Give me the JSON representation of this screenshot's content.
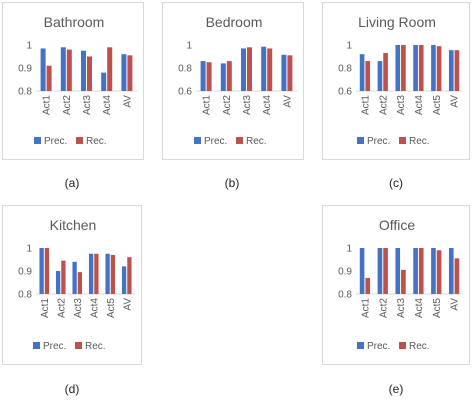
{
  "colors": {
    "prec": "#4472c4",
    "rec": "#c0504d",
    "text": "#595959",
    "grid": "#d9d9d9"
  },
  "legend": {
    "prec": "Prec.",
    "rec": "Rec."
  },
  "captions": [
    "(a)",
    "(b)",
    "(c)",
    "(d)",
    "(e)"
  ],
  "chart_data": [
    {
      "type": "bar",
      "title": "Bathroom",
      "categories": [
        "Act1",
        "Act2",
        "Act3",
        "Act4",
        "AV"
      ],
      "series": [
        {
          "name": "Prec.",
          "values": [
            0.985,
            0.99,
            0.975,
            0.88,
            0.96
          ]
        },
        {
          "name": "Rec.",
          "values": [
            0.91,
            0.98,
            0.95,
            0.99,
            0.955
          ]
        }
      ],
      "ylim": [
        0.8,
        1.0
      ],
      "yticks": [
        "0.8",
        "0.9",
        "1"
      ],
      "legend": "bottom"
    },
    {
      "type": "bar",
      "title": "Bedroom",
      "categories": [
        "Act1",
        "Act2",
        "Act3",
        "Act4",
        "AV"
      ],
      "series": [
        {
          "name": "Prec.",
          "values": [
            0.86,
            0.84,
            0.97,
            0.985,
            0.915
          ]
        },
        {
          "name": "Rec.",
          "values": [
            0.85,
            0.86,
            0.98,
            0.97,
            0.91
          ]
        }
      ],
      "ylim": [
        0.6,
        1.0
      ],
      "yticks": [
        "0.6",
        "0.8",
        "1"
      ],
      "legend": "bottom"
    },
    {
      "type": "bar",
      "title": "Living Room",
      "categories": [
        "Act1",
        "Act2",
        "Act3",
        "Act4",
        "Act5",
        "AV"
      ],
      "series": [
        {
          "name": "Prec.",
          "values": [
            0.92,
            0.86,
            1.0,
            1.0,
            1.0,
            0.955
          ]
        },
        {
          "name": "Rec.",
          "values": [
            0.86,
            0.93,
            1.0,
            1.0,
            0.99,
            0.955
          ]
        }
      ],
      "ylim": [
        0.6,
        1.0
      ],
      "yticks": [
        "0.6",
        "0.8",
        "1"
      ],
      "legend": "bottom"
    },
    {
      "type": "bar",
      "title": "Kitchen",
      "categories": [
        "Act1",
        "Act2",
        "Act3",
        "Act4",
        "Act5",
        "AV"
      ],
      "series": [
        {
          "name": "Prec.",
          "values": [
            1.0,
            0.9,
            0.94,
            0.975,
            0.975,
            0.92
          ]
        },
        {
          "name": "Rec.",
          "values": [
            1.0,
            0.945,
            0.895,
            0.975,
            0.97,
            0.96
          ]
        }
      ],
      "ylim": [
        0.8,
        1.0
      ],
      "yticks": [
        "0.8",
        "0.9",
        "1"
      ],
      "legend": "bottom"
    },
    {
      "type": "bar",
      "title": "Office",
      "categories": [
        "Act1",
        "Act2",
        "Act3",
        "Act4",
        "Act5",
        "AV"
      ],
      "series": [
        {
          "name": "Prec.",
          "values": [
            1.0,
            1.0,
            1.0,
            1.0,
            1.0,
            1.0
          ]
        },
        {
          "name": "Rec.",
          "values": [
            0.87,
            1.0,
            0.905,
            1.0,
            0.99,
            0.955
          ]
        }
      ],
      "ylim": [
        0.8,
        1.0
      ],
      "yticks": [
        "0.8",
        "0.9",
        "1"
      ],
      "legend": "bottom"
    }
  ]
}
